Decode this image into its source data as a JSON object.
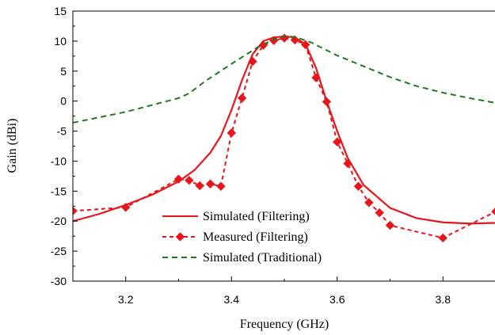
{
  "chart_data": {
    "type": "line",
    "xlabel": "Frequency (GHz)",
    "ylabel": "Gain (dBi)",
    "xlim": [
      3.1,
      3.9
    ],
    "ylim": [
      -30,
      15
    ],
    "xticks": [
      3.2,
      3.4,
      3.6,
      3.8
    ],
    "xtick_labels": [
      "3.2",
      "3.4",
      "3.6",
      "3.8"
    ],
    "yticks": [
      15,
      10,
      5,
      0,
      -5,
      -10,
      -15,
      -20,
      -25,
      -30
    ],
    "ytick_labels": [
      "15",
      "10",
      "5",
      "0",
      "-5",
      "-10",
      "-15",
      "-20",
      "-25",
      "-30"
    ],
    "grid": false,
    "legend_position": "bottom-center",
    "series": [
      {
        "name": "Simulated (Filtering)",
        "color": "#e8161b",
        "style": "solid",
        "marker": "none",
        "x": [
          3.1,
          3.15,
          3.2,
          3.25,
          3.3,
          3.33,
          3.36,
          3.38,
          3.4,
          3.42,
          3.44,
          3.46,
          3.48,
          3.5,
          3.52,
          3.54,
          3.56,
          3.58,
          3.6,
          3.62,
          3.65,
          3.7,
          3.75,
          3.8,
          3.85,
          3.9
        ],
        "y": [
          -20.0,
          -18.8,
          -17.3,
          -15.6,
          -13.4,
          -11.5,
          -8.6,
          -5.8,
          -1.5,
          3.5,
          7.8,
          10.0,
          10.6,
          10.8,
          10.6,
          9.5,
          5.5,
          0.0,
          -5.0,
          -9.5,
          -14.0,
          -17.8,
          -19.5,
          -20.2,
          -20.4,
          -20.3
        ]
      },
      {
        "name": "Measured (Filtering)",
        "color": "#e8161b",
        "style": "dashed",
        "marker": "diamond",
        "x": [
          3.1,
          3.2,
          3.3,
          3.32,
          3.34,
          3.36,
          3.38,
          3.4,
          3.42,
          3.44,
          3.46,
          3.48,
          3.5,
          3.52,
          3.54,
          3.56,
          3.58,
          3.6,
          3.62,
          3.64,
          3.66,
          3.68,
          3.7,
          3.8,
          3.9
        ],
        "y": [
          -18.3,
          -17.7,
          -13.0,
          -13.2,
          -14.1,
          -13.8,
          -14.2,
          -5.3,
          0.5,
          6.6,
          9.3,
          10.1,
          10.5,
          10.2,
          9.4,
          3.9,
          -0.1,
          -6.8,
          -10.4,
          -14.2,
          -16.9,
          -18.6,
          -20.7,
          -22.8,
          -18.4
        ]
      },
      {
        "name": "Simulated (Traditional)",
        "color": "#1f7a1f",
        "style": "dashed",
        "marker": "none",
        "x": [
          3.1,
          3.2,
          3.3,
          3.32,
          3.35,
          3.4,
          3.45,
          3.48,
          3.5,
          3.52,
          3.55,
          3.6,
          3.65,
          3.7,
          3.75,
          3.8,
          3.85,
          3.9
        ],
        "y": [
          -3.6,
          -1.8,
          0.5,
          1.3,
          3.3,
          6.2,
          9.0,
          10.3,
          10.8,
          10.7,
          9.8,
          7.6,
          5.8,
          4.0,
          2.5,
          1.4,
          0.5,
          -0.3
        ]
      }
    ]
  }
}
